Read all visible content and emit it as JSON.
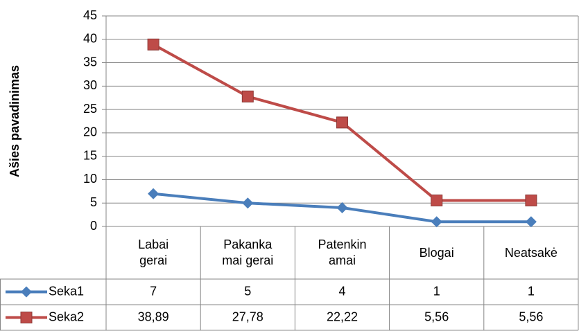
{
  "chart_data": {
    "type": "line",
    "y_axis_label": "Ašies pavadinimas",
    "categories": [
      "Labai gerai",
      "Pakankamai gerai",
      "Patenkinamai",
      "Blogai",
      "Neatsakė"
    ],
    "series": [
      {
        "name": "Seka1",
        "color": "#4a7ebb",
        "marker": "diamond",
        "values": [
          7,
          5,
          4,
          1,
          1
        ]
      },
      {
        "name": "Seka2",
        "color": "#be4b48",
        "marker": "square",
        "values": [
          38.89,
          27.78,
          22.22,
          5.56,
          5.56
        ],
        "value_labels": [
          "38,89",
          "27,78",
          "22,22",
          "5,56",
          "5,56"
        ]
      }
    ],
    "ylim": [
      0,
      45
    ],
    "yticks": [
      0,
      5,
      10,
      15,
      20,
      25,
      30,
      35,
      40,
      45
    ],
    "grid": true
  }
}
